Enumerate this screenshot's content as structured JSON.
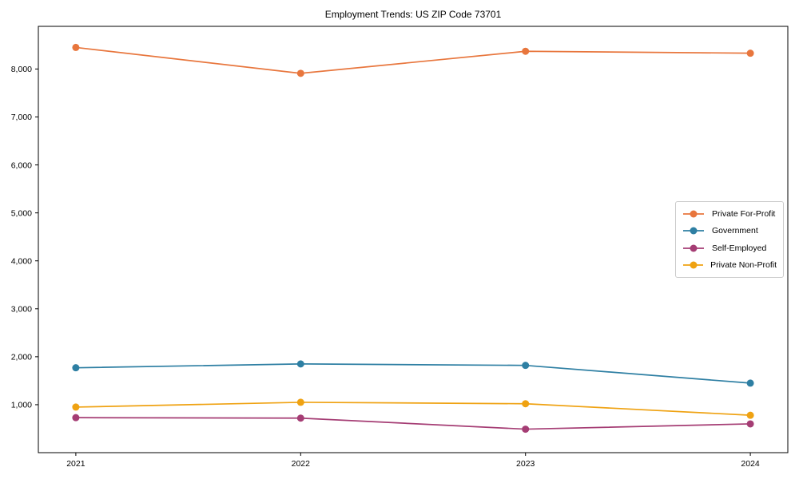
{
  "chart_data": {
    "type": "line",
    "title": "Employment Trends: US ZIP Code 73701",
    "x_categories": [
      "2021",
      "2022",
      "2023",
      "2024"
    ],
    "series": [
      {
        "name": "Private For-Profit",
        "color": "#e8763d",
        "values": [
          8450,
          7910,
          8370,
          8330
        ]
      },
      {
        "name": "Government",
        "color": "#2e7fa3",
        "values": [
          1770,
          1850,
          1820,
          1450
        ]
      },
      {
        "name": "Self-Employed",
        "color": "#a53d74",
        "values": [
          730,
          720,
          490,
          600
        ]
      },
      {
        "name": "Private Non-Profit",
        "color": "#efa212",
        "values": [
          950,
          1050,
          1020,
          780
        ]
      }
    ],
    "ylim": [
      0,
      8890
    ],
    "ytick_values": [
      1000,
      2000,
      3000,
      4000,
      5000,
      6000,
      7000,
      8000
    ],
    "ytick_labels": [
      "1,000",
      "2,000",
      "3,000",
      "4,000",
      "5,000",
      "6,000",
      "7,000",
      "8,000"
    ],
    "grid": false,
    "legend_position": "center right",
    "axis_color": "#000000",
    "marker": "circle"
  }
}
